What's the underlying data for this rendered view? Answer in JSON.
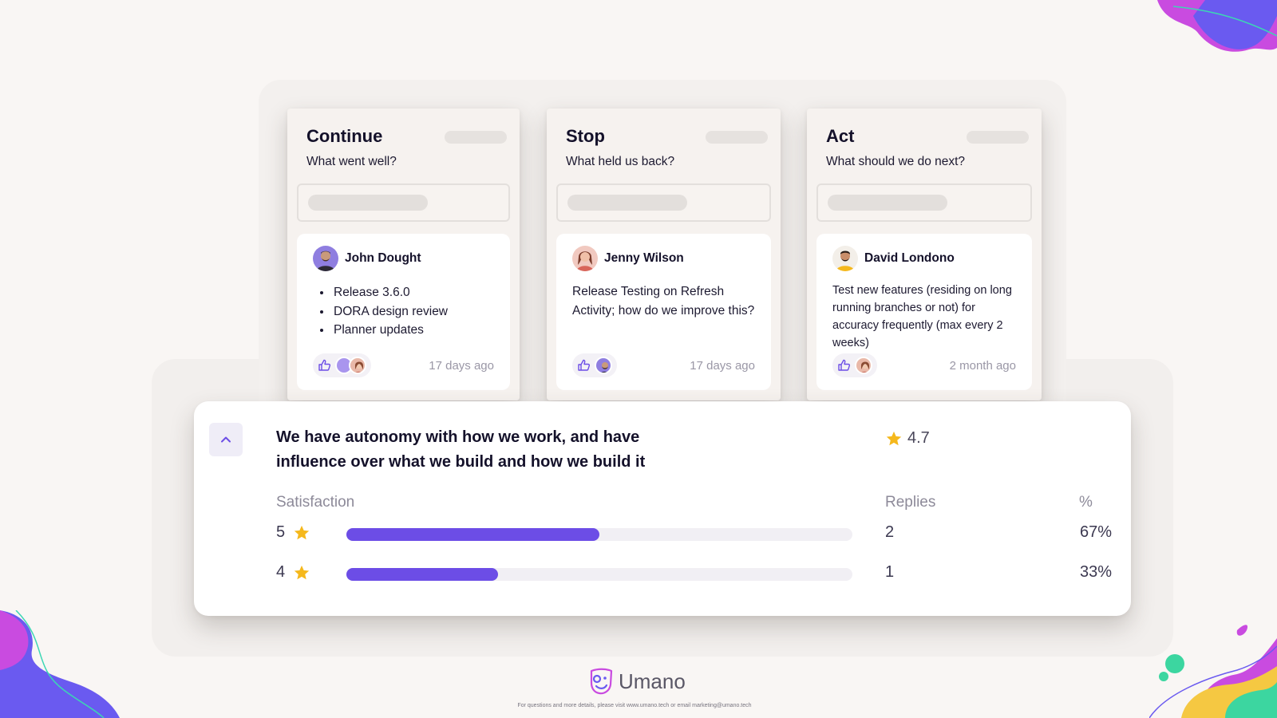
{
  "columns": [
    {
      "title": "Continue",
      "subtitle": "What went well?",
      "note": {
        "author": "John Dought",
        "items": [
          "Release 3.6.0",
          "DORA design review",
          "Planner updates"
        ],
        "time": "17 days ago"
      }
    },
    {
      "title": "Stop",
      "subtitle": "What held us back?",
      "note": {
        "author": "Jenny Wilson",
        "text": "Release Testing on Refresh Activity; how do we improve this?",
        "time": "17 days ago"
      }
    },
    {
      "title": "Act",
      "subtitle": "What should we do next?",
      "note": {
        "author": "David Londono",
        "text": "Test new features (residing on long running branches or not) for accuracy frequently (max every 2 weeks)",
        "time": "2 month ago"
      }
    }
  ],
  "survey": {
    "question": "We have autonomy with how we work, and have influence over what we build and how we build it",
    "rating": "4.7",
    "headers": {
      "satisfaction": "Satisfaction",
      "replies": "Replies",
      "percent": "%"
    },
    "rows": [
      {
        "score": "5",
        "replies": "2",
        "percent": "67%",
        "fill": 0.5
      },
      {
        "score": "4",
        "replies": "1",
        "percent": "33%",
        "fill": 0.3
      }
    ]
  },
  "brand": {
    "name": "Umano"
  },
  "footer": {
    "note": "For questions and more details, please visit www.umano.tech or email marketing@umano.tech"
  },
  "colors": {
    "accent": "#6c4de6",
    "star": "#f5b81c",
    "background": "#f9f6f4"
  }
}
